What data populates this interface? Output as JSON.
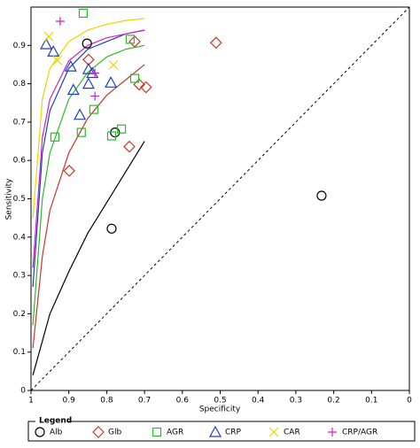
{
  "chart_data": {
    "type": "scatter",
    "x_label": "Specificity",
    "y_label": "Sensitivity",
    "xlim": [
      1,
      0
    ],
    "xticks": [
      1,
      0.9,
      0.8,
      0.7,
      0.6,
      0.5,
      0.4,
      0.3,
      0.2,
      0.1,
      0
    ],
    "ylim": [
      0,
      1
    ],
    "yticks": [
      0,
      0.1,
      0.2,
      0.3,
      0.4,
      0.5,
      0.6,
      0.7,
      0.8,
      0.9
    ],
    "legend_title": "Legend",
    "legend": "bottom",
    "series": [
      {
        "name": "Alb",
        "color": "#000000",
        "marker": "circle",
        "x": [
          0.852,
          0.778,
          0.787,
          0.232
        ],
        "values": [
          0.905,
          0.673,
          0.422,
          0.508
        ],
        "curve_x": [
          0.995,
          0.95,
          0.9,
          0.85,
          0.8,
          0.75,
          0.7
        ],
        "curve_y": [
          0.04,
          0.2,
          0.31,
          0.41,
          0.49,
          0.57,
          0.65
        ]
      },
      {
        "name": "Glb",
        "color": "#c0392b",
        "marker": "diamond",
        "x": [
          0.511,
          0.726,
          0.848,
          0.714,
          0.696,
          0.74,
          0.899
        ],
        "values": [
          0.907,
          0.91,
          0.863,
          0.798,
          0.791,
          0.636,
          0.573
        ],
        "curve_x": [
          0.995,
          0.97,
          0.95,
          0.9,
          0.85,
          0.8,
          0.75,
          0.7
        ],
        "curve_y": [
          0.11,
          0.35,
          0.47,
          0.62,
          0.71,
          0.77,
          0.81,
          0.85
        ]
      },
      {
        "name": "AGR",
        "color": "#2eb82e",
        "marker": "square",
        "x": [
          0.862,
          0.738,
          0.726,
          0.834,
          0.761,
          0.787,
          0.867,
          0.937
        ],
        "values": [
          0.984,
          0.916,
          0.814,
          0.733,
          0.682,
          0.664,
          0.673,
          0.661
        ],
        "curve_x": [
          0.995,
          0.97,
          0.95,
          0.9,
          0.85,
          0.8,
          0.75,
          0.7
        ],
        "curve_y": [
          0.17,
          0.5,
          0.62,
          0.76,
          0.83,
          0.87,
          0.89,
          0.9
        ]
      },
      {
        "name": "CRP",
        "color": "#1f3fbf",
        "marker": "triangle",
        "x": [
          0.96,
          0.941,
          0.895,
          0.848,
          0.838,
          0.848,
          0.888,
          0.789,
          0.871
        ],
        "values": [
          0.903,
          0.884,
          0.845,
          0.838,
          0.828,
          0.8,
          0.784,
          0.803,
          0.719
        ],
        "curve_x": [
          0.995,
          0.97,
          0.95,
          0.9,
          0.85,
          0.8,
          0.75,
          0.7
        ],
        "curve_y": [
          0.27,
          0.62,
          0.73,
          0.84,
          0.89,
          0.91,
          0.93,
          0.94
        ]
      },
      {
        "name": "CAR",
        "color": "#e6d800",
        "marker": "x",
        "x": [
          0.953,
          0.782,
          0.93
        ],
        "values": [
          0.923,
          0.849,
          0.861
        ],
        "curve_x": [
          0.995,
          0.97,
          0.95,
          0.9,
          0.85,
          0.8,
          0.75,
          0.7
        ],
        "curve_y": [
          0.45,
          0.76,
          0.84,
          0.91,
          0.94,
          0.955,
          0.965,
          0.97
        ]
      },
      {
        "name": "CRP/AGR",
        "color": "#cc22cc",
        "marker": "plus",
        "x": [
          0.923,
          0.831,
          0.831
        ],
        "values": [
          0.963,
          0.828,
          0.768
        ],
        "curve_x": [
          0.995,
          0.97,
          0.95,
          0.9,
          0.85,
          0.8,
          0.75,
          0.7
        ],
        "curve_y": [
          0.32,
          0.66,
          0.76,
          0.86,
          0.9,
          0.92,
          0.93,
          0.94
        ]
      }
    ]
  }
}
